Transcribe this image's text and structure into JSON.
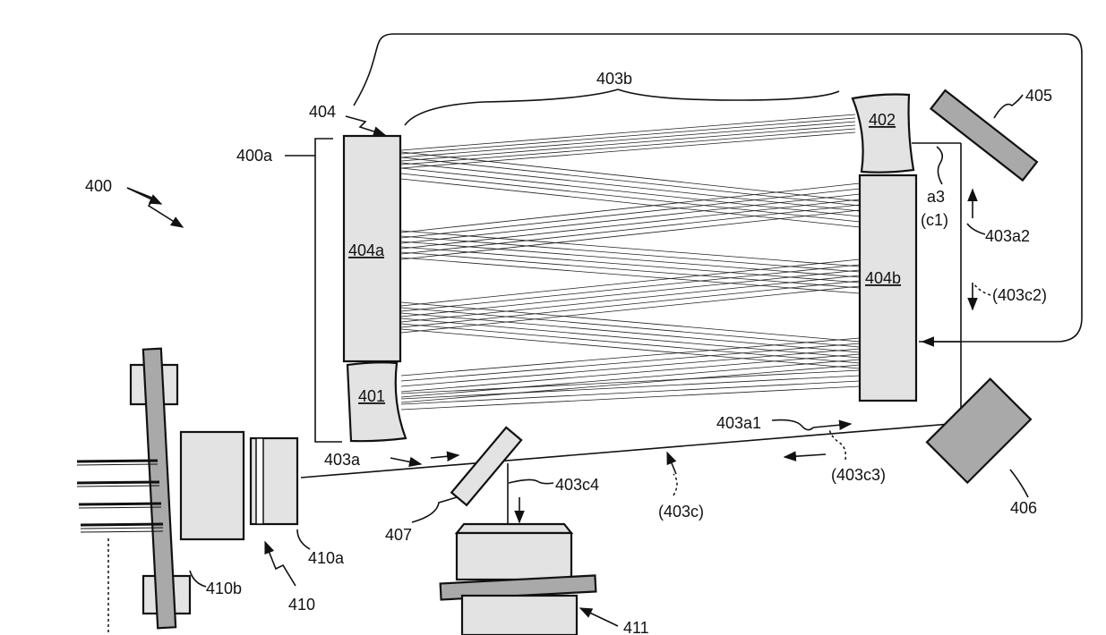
{
  "figure_number": "400",
  "labels": {
    "l400": "400",
    "l400a": "400a",
    "l401": "401",
    "l402": "402",
    "l403a": "403a",
    "l403a1": "403a1",
    "l403a2": "403a2",
    "l403b": "403b",
    "l403c": "(403c)",
    "l403c2": "(403c2)",
    "l403c3": "(403c3)",
    "l403c4": "403c4",
    "l404": "404",
    "l404a": "404a",
    "l404b": "404b",
    "l405": "405",
    "l406": "406",
    "l407": "407",
    "l410": "410",
    "l410a": "410a",
    "l410b": "410b",
    "l411": "411",
    "la3": "a3",
    "lc1": "(c1)"
  },
  "colors": {
    "mirror_fill": "#e3e3e3",
    "dark_part_fill": "#a9a9a9",
    "line": "#111111"
  }
}
